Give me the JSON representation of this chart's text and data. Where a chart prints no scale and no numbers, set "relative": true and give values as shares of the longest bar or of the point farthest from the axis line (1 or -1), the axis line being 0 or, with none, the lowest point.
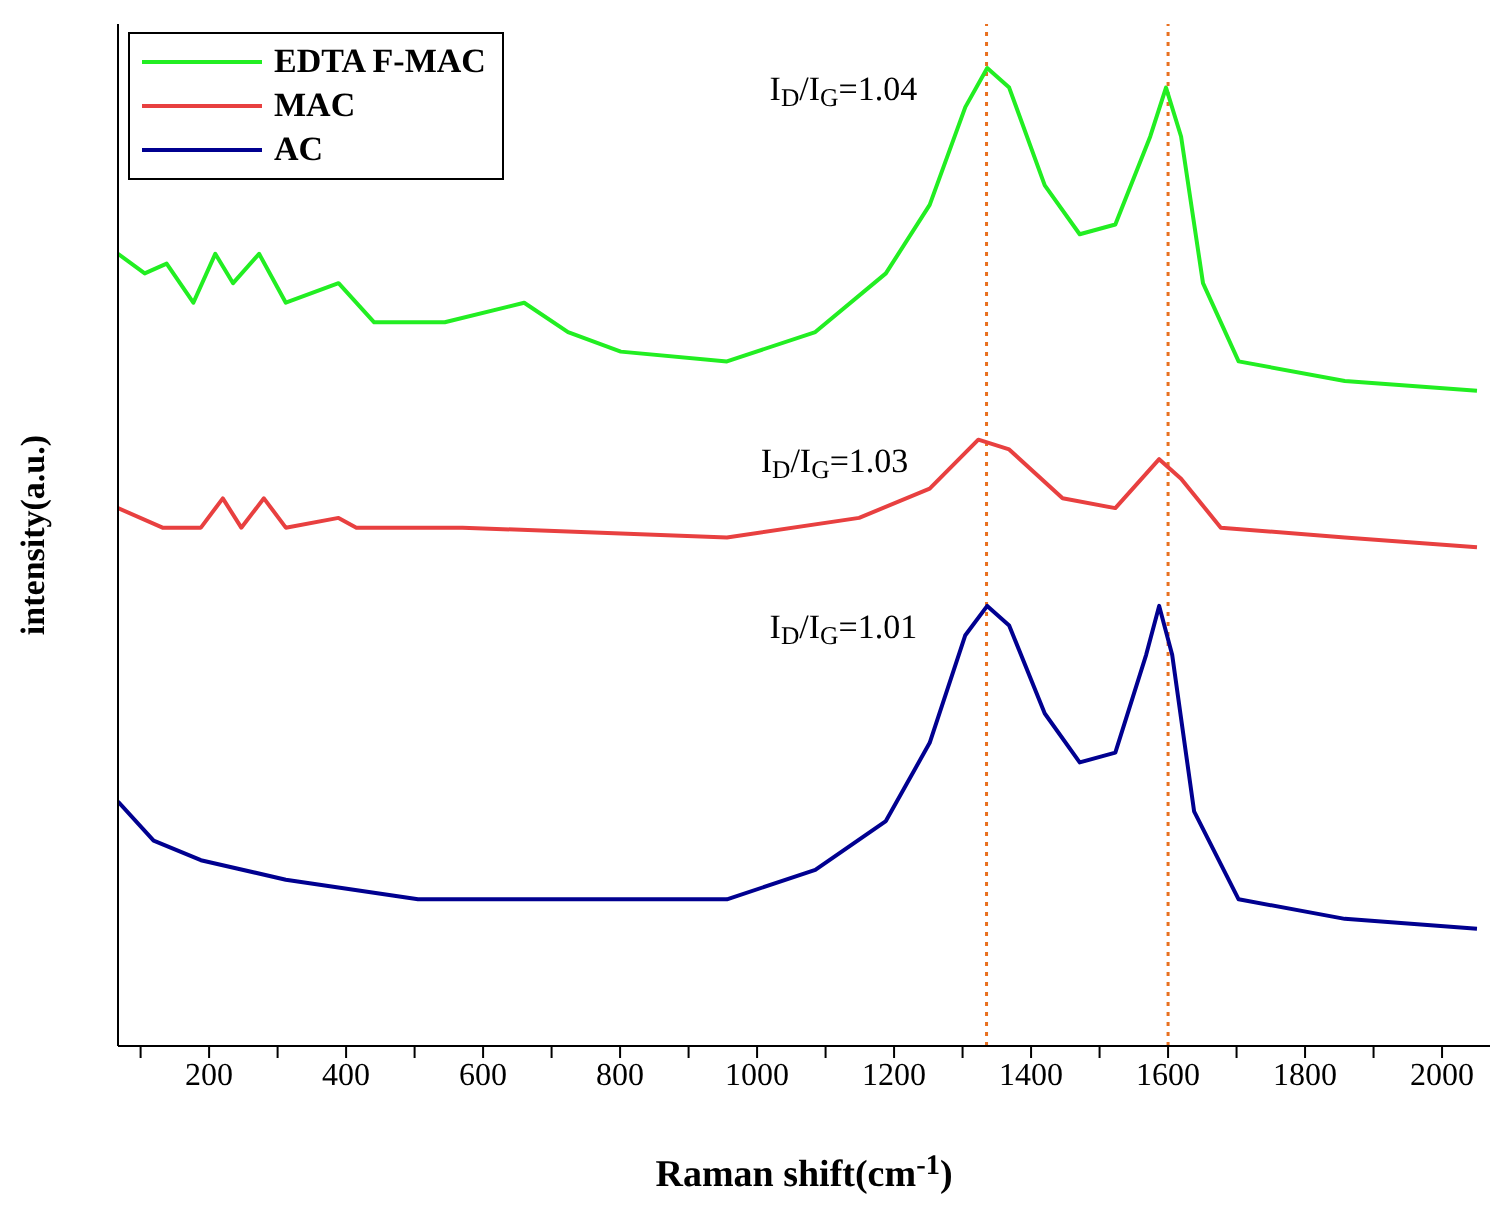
{
  "chart_data": {
    "type": "line",
    "relative": true,
    "xlabel": "Raman shift(cm$^{-1}$)",
    "ylabel": "intensity(a.u.)",
    "xlim": [
      67,
      2070
    ],
    "xticks": [
      {
        "value": 100,
        "label": null
      },
      200,
      {
        "value": 300,
        "label": null
      },
      400,
      {
        "value": 500,
        "label": null
      },
      600,
      {
        "value": 700,
        "label": null
      },
      800,
      {
        "value": 900,
        "label": null
      },
      1000,
      {
        "value": 1100,
        "label": null
      },
      1200,
      {
        "value": 1300,
        "label": null
      },
      1400,
      {
        "value": 1500,
        "label": null
      },
      1600,
      {
        "value": 1700,
        "label": null
      },
      1800,
      {
        "value": 1900,
        "label": null
      },
      2000
    ],
    "legend": "top left",
    "marker": "none",
    "line_style": "solid",
    "grid": false,
    "series": [
      {
        "name": "EDTA F-MAC",
        "color": "#22ee22",
        "x": [
          67,
          106,
          138,
          177,
          209,
          235,
          273,
          312,
          389,
          441,
          544,
          660,
          724,
          801,
          956,
          1085,
          1188,
          1252,
          1304,
          1336,
          1368,
          1420,
          1471,
          1523,
          1574,
          1597,
          1619,
          1651,
          1703,
          1858,
          2051
        ],
        "values": [
          0.81,
          0.79,
          0.8,
          0.76,
          0.81,
          0.78,
          0.81,
          0.76,
          0.78,
          0.74,
          0.74,
          0.76,
          0.73,
          0.71,
          0.7,
          0.73,
          0.79,
          0.86,
          0.96,
          1,
          0.98,
          0.88,
          0.83,
          0.84,
          0.93,
          0.98,
          0.93,
          0.78,
          0.7,
          0.68,
          0.67
        ]
      },
      {
        "name": "MAC",
        "color": "#e84040",
        "x": [
          67,
          132,
          188,
          220,
          247,
          280,
          312,
          389,
          415,
          570,
          956,
          1149,
          1252,
          1323,
          1368,
          1446,
          1523,
          1587,
          1619,
          1677,
          1858,
          2051
        ],
        "values": [
          0.55,
          0.53,
          0.53,
          0.56,
          0.53,
          0.56,
          0.53,
          0.54,
          0.53,
          0.53,
          0.52,
          0.54,
          0.57,
          0.62,
          0.61,
          0.56,
          0.55,
          0.6,
          0.58,
          0.53,
          0.52,
          0.51
        ]
      },
      {
        "name": "AC",
        "color": "#000090",
        "x": [
          67,
          119,
          188,
          312,
          505,
          699,
          956,
          1085,
          1188,
          1252,
          1304,
          1336,
          1368,
          1420,
          1471,
          1523,
          1568,
          1587,
          1606,
          1638,
          1703,
          1858,
          2051
        ],
        "values": [
          0.25,
          0.21,
          0.19,
          0.17,
          0.15,
          0.15,
          0.15,
          0.18,
          0.23,
          0.31,
          0.42,
          0.45,
          0.43,
          0.34,
          0.29,
          0.3,
          0.4,
          0.45,
          0.4,
          0.24,
          0.15,
          0.13,
          0.12
        ]
      }
    ],
    "ref_lines": [
      {
        "axis": "x",
        "value": 1335,
        "color": "#e87020",
        "line_style": "dotted"
      },
      {
        "axis": "x",
        "value": 1600,
        "color": "#e87020",
        "line_style": "dotted"
      }
    ],
    "annotations": [
      "I$_{D}$/I$_{G}$=1.04",
      "I$_{D}$/I$_{G}$=1.03",
      "I$_{D}$/I$_{G}$=1.01"
    ]
  }
}
